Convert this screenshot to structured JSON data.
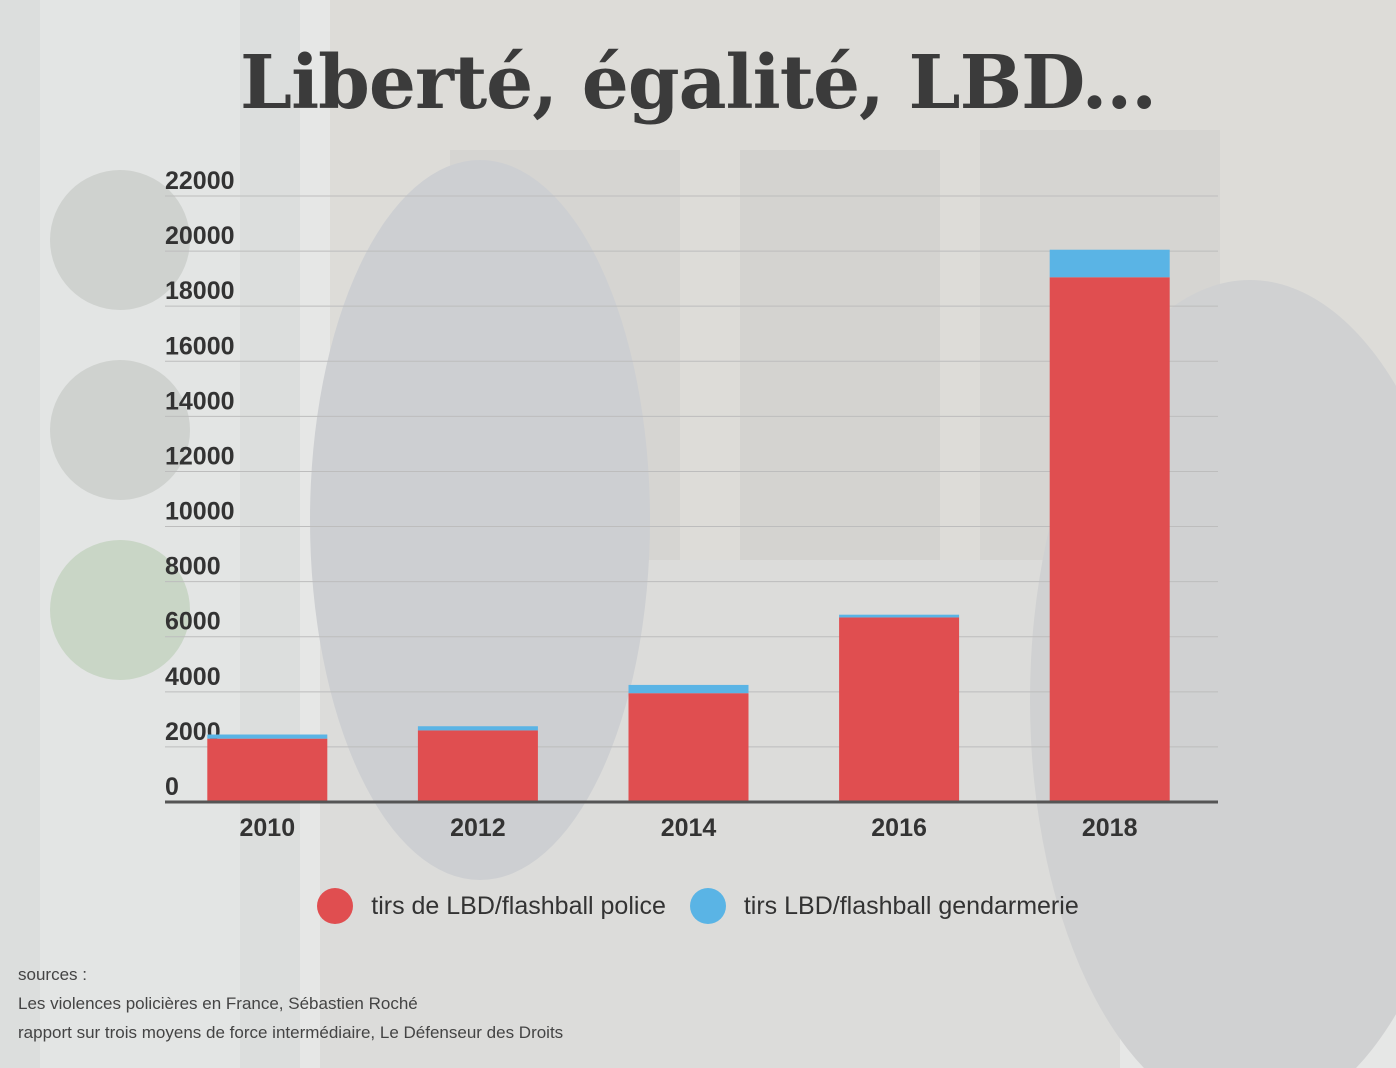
{
  "title": "Liberté, égalité, LBD...",
  "colors": {
    "police": "#e04e50",
    "gendarmerie": "#5ab4e5",
    "grid": "#bdbdbd",
    "axis": "#555555",
    "text": "#333333"
  },
  "chart_data": {
    "type": "bar",
    "stacked": true,
    "categories": [
      "2010",
      "2012",
      "2014",
      "2016",
      "2018"
    ],
    "series": [
      {
        "name": "tirs de LBD/flashball police",
        "values": [
          2300,
          2600,
          3950,
          6700,
          19050
        ]
      },
      {
        "name": "tirs LBD/flashball gendarmerie",
        "values": [
          150,
          150,
          300,
          100,
          1000
        ]
      }
    ],
    "yticks": [
      "0",
      "2000",
      "4000",
      "6000",
      "8000",
      "10000",
      "12000",
      "14000",
      "16000",
      "18000",
      "20000",
      "22000"
    ],
    "ylim": [
      0,
      22000
    ],
    "grid": true,
    "legend": "bottom"
  },
  "sources": {
    "heading": "sources :",
    "items": [
      "Les violences policières en France, Sébastien Roché",
      "rapport sur trois moyens de force intermédiaire, Le Défenseur des Droits"
    ]
  }
}
